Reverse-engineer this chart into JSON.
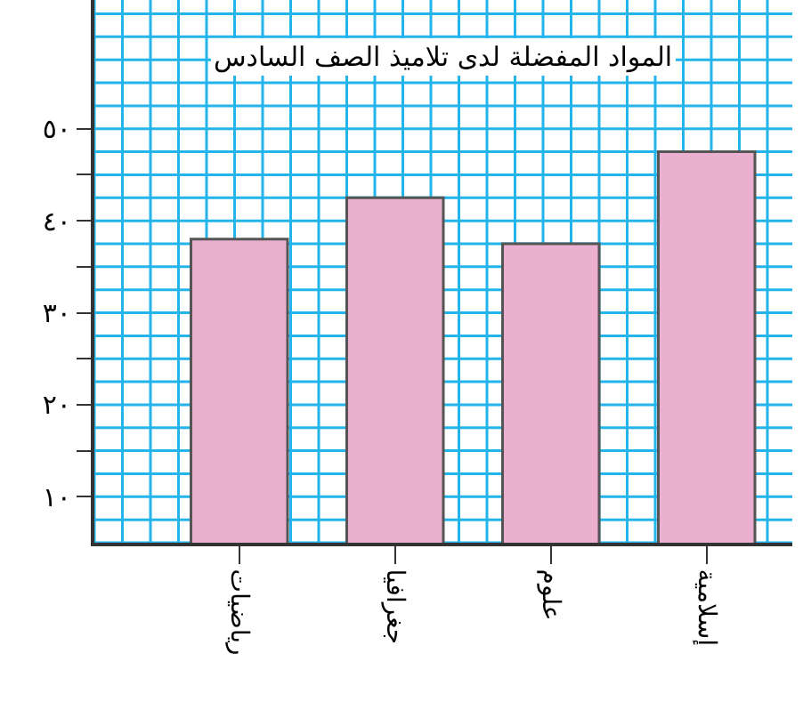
{
  "chart_data": {
    "type": "bar",
    "title": "المواد المفضلة لدى تلاميذ الصف السادس",
    "categories": [
      "رياضيات",
      "جغرافيا",
      "علوم",
      "إسلامية"
    ],
    "values": [
      38,
      42.5,
      37.5,
      47.5
    ],
    "color": "#ebafcf",
    "ylim": [
      5,
      64
    ],
    "yticks": [
      {
        "value": 10,
        "label": "١٠"
      },
      {
        "value": 15,
        "label": null
      },
      {
        "value": 20,
        "label": "٢٠"
      },
      {
        "value": 25,
        "label": null
      },
      {
        "value": 30,
        "label": "٣٠"
      },
      {
        "value": 35,
        "label": null
      },
      {
        "value": 40,
        "label": "٤٠"
      },
      {
        "value": 45,
        "label": null
      },
      {
        "value": 50,
        "label": "٥٠"
      }
    ],
    "grid": true
  }
}
